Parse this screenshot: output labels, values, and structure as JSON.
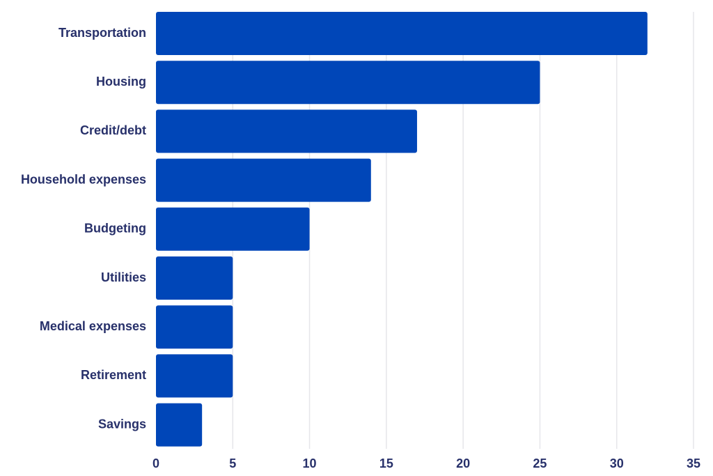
{
  "colors": {
    "bar": "#0046B8",
    "label_text": "#27306A",
    "grid": "#E6E6EA"
  },
  "chart_data": {
    "type": "bar",
    "orientation": "horizontal",
    "title": "",
    "xlabel": "",
    "ylabel": "",
    "categories": [
      "Transportation",
      "Housing",
      "Credit/debt",
      "Household expenses",
      "Budgeting",
      "Utilities",
      "Medical expenses",
      "Retirement",
      "Savings"
    ],
    "values": [
      32,
      25,
      17,
      14,
      10,
      5,
      5,
      5,
      3
    ],
    "xlim": [
      0,
      35
    ],
    "xticks": [
      0,
      5,
      10,
      15,
      20,
      25,
      30,
      35
    ],
    "grid": true,
    "legend": "none"
  }
}
